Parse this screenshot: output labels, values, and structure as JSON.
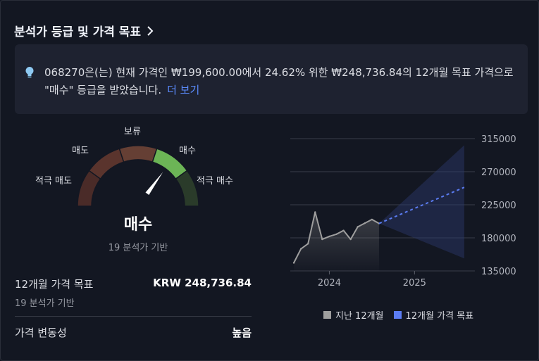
{
  "header": {
    "title": "분석가 등급 및 가격 목표"
  },
  "summary": {
    "text": "068270은(는) 현재 가격인 ₩199,600.00에서 24.62% 위한 ₩248,736.84의 12개월 목표 가격으로 \"매수\" 등급을 받았습니다.",
    "more_label": "더 보기",
    "icon": "lightbulb-icon"
  },
  "gauge": {
    "labels": {
      "strong_sell": "적극 매도",
      "sell": "매도",
      "neutral": "보류",
      "buy": "매수",
      "strong_buy": "적극 매수"
    },
    "verdict": "매수",
    "analyst_count_text": "19 분석가 기반",
    "segment_colors": [
      "#4a2b28",
      "#5a342d",
      "#653f34",
      "#6cb556",
      "#2a3b2a"
    ],
    "active_segment": "buy",
    "needle_color": "#ffffff"
  },
  "target": {
    "label": "12개월 가격 목표",
    "value": "KRW 248,736.84",
    "sub": "19 분석가 기반"
  },
  "volatility": {
    "label": "가격 변동성",
    "value": "높음"
  },
  "chart_data": {
    "type": "line",
    "y_ticks": [
      "315000",
      "270000",
      "225000",
      "180000",
      "135000"
    ],
    "ylim": [
      135000,
      315000
    ],
    "x_ticks": [
      "2024",
      "2025"
    ],
    "series": [
      {
        "name": "지난 12개월",
        "color": "#9e9e9e",
        "x": [
          "2023-08",
          "2023-09",
          "2023-10",
          "2023-11",
          "2023-12",
          "2024-01",
          "2024-02",
          "2024-03",
          "2024-04",
          "2024-05",
          "2024-06",
          "2024-07",
          "2024-08"
        ],
        "values": [
          146000,
          165000,
          172000,
          215000,
          178000,
          182000,
          185000,
          190000,
          178000,
          195000,
          200000,
          205000,
          199600
        ]
      },
      {
        "name": "12개월 가격 목표",
        "color": "#5b7cf2",
        "x": [
          "2024-08",
          "2025-08"
        ],
        "values": [
          199600,
          248736.84
        ]
      }
    ],
    "target_range": {
      "high": 306000,
      "low": 152000
    },
    "grid": true,
    "legend_position": "bottom"
  },
  "legend": {
    "past": "지난 12개월",
    "target": "12개월 가격 목표",
    "past_color": "#9e9e9e",
    "target_color": "#5b7cf2"
  }
}
